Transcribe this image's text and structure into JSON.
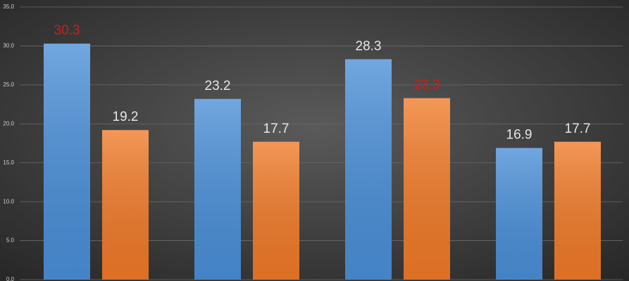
{
  "chart_data": {
    "type": "bar",
    "categories": [
      null,
      null,
      null,
      null
    ],
    "series": [
      {
        "color": "#4a8fd8",
        "values": [
          30.3,
          23.2,
          28.3,
          16.9
        ],
        "value_label_colors": [
          "#cc1f1a",
          "#e6e6e6",
          "#e6e6e6",
          "#e6e6e6"
        ]
      },
      {
        "color": "#f07a28",
        "values": [
          19.2,
          17.7,
          23.3,
          17.7
        ],
        "value_label_colors": [
          "#e6e6e6",
          "#e6e6e6",
          "#cc1f1a",
          "#e6e6e6"
        ]
      }
    ],
    "ylim": [
      0,
      35
    ],
    "yticks": [
      {
        "value": 0,
        "label": "0.0"
      },
      {
        "value": 5,
        "label": "5.0"
      },
      {
        "value": 10,
        "label": "10.0"
      },
      {
        "value": 15,
        "label": "15.0"
      },
      {
        "value": 20,
        "label": "20.0"
      },
      {
        "value": 25,
        "label": "25.0"
      },
      {
        "value": 30,
        "label": "30.0"
      },
      {
        "value": 35,
        "label": "35.0"
      }
    ],
    "grid": true
  }
}
